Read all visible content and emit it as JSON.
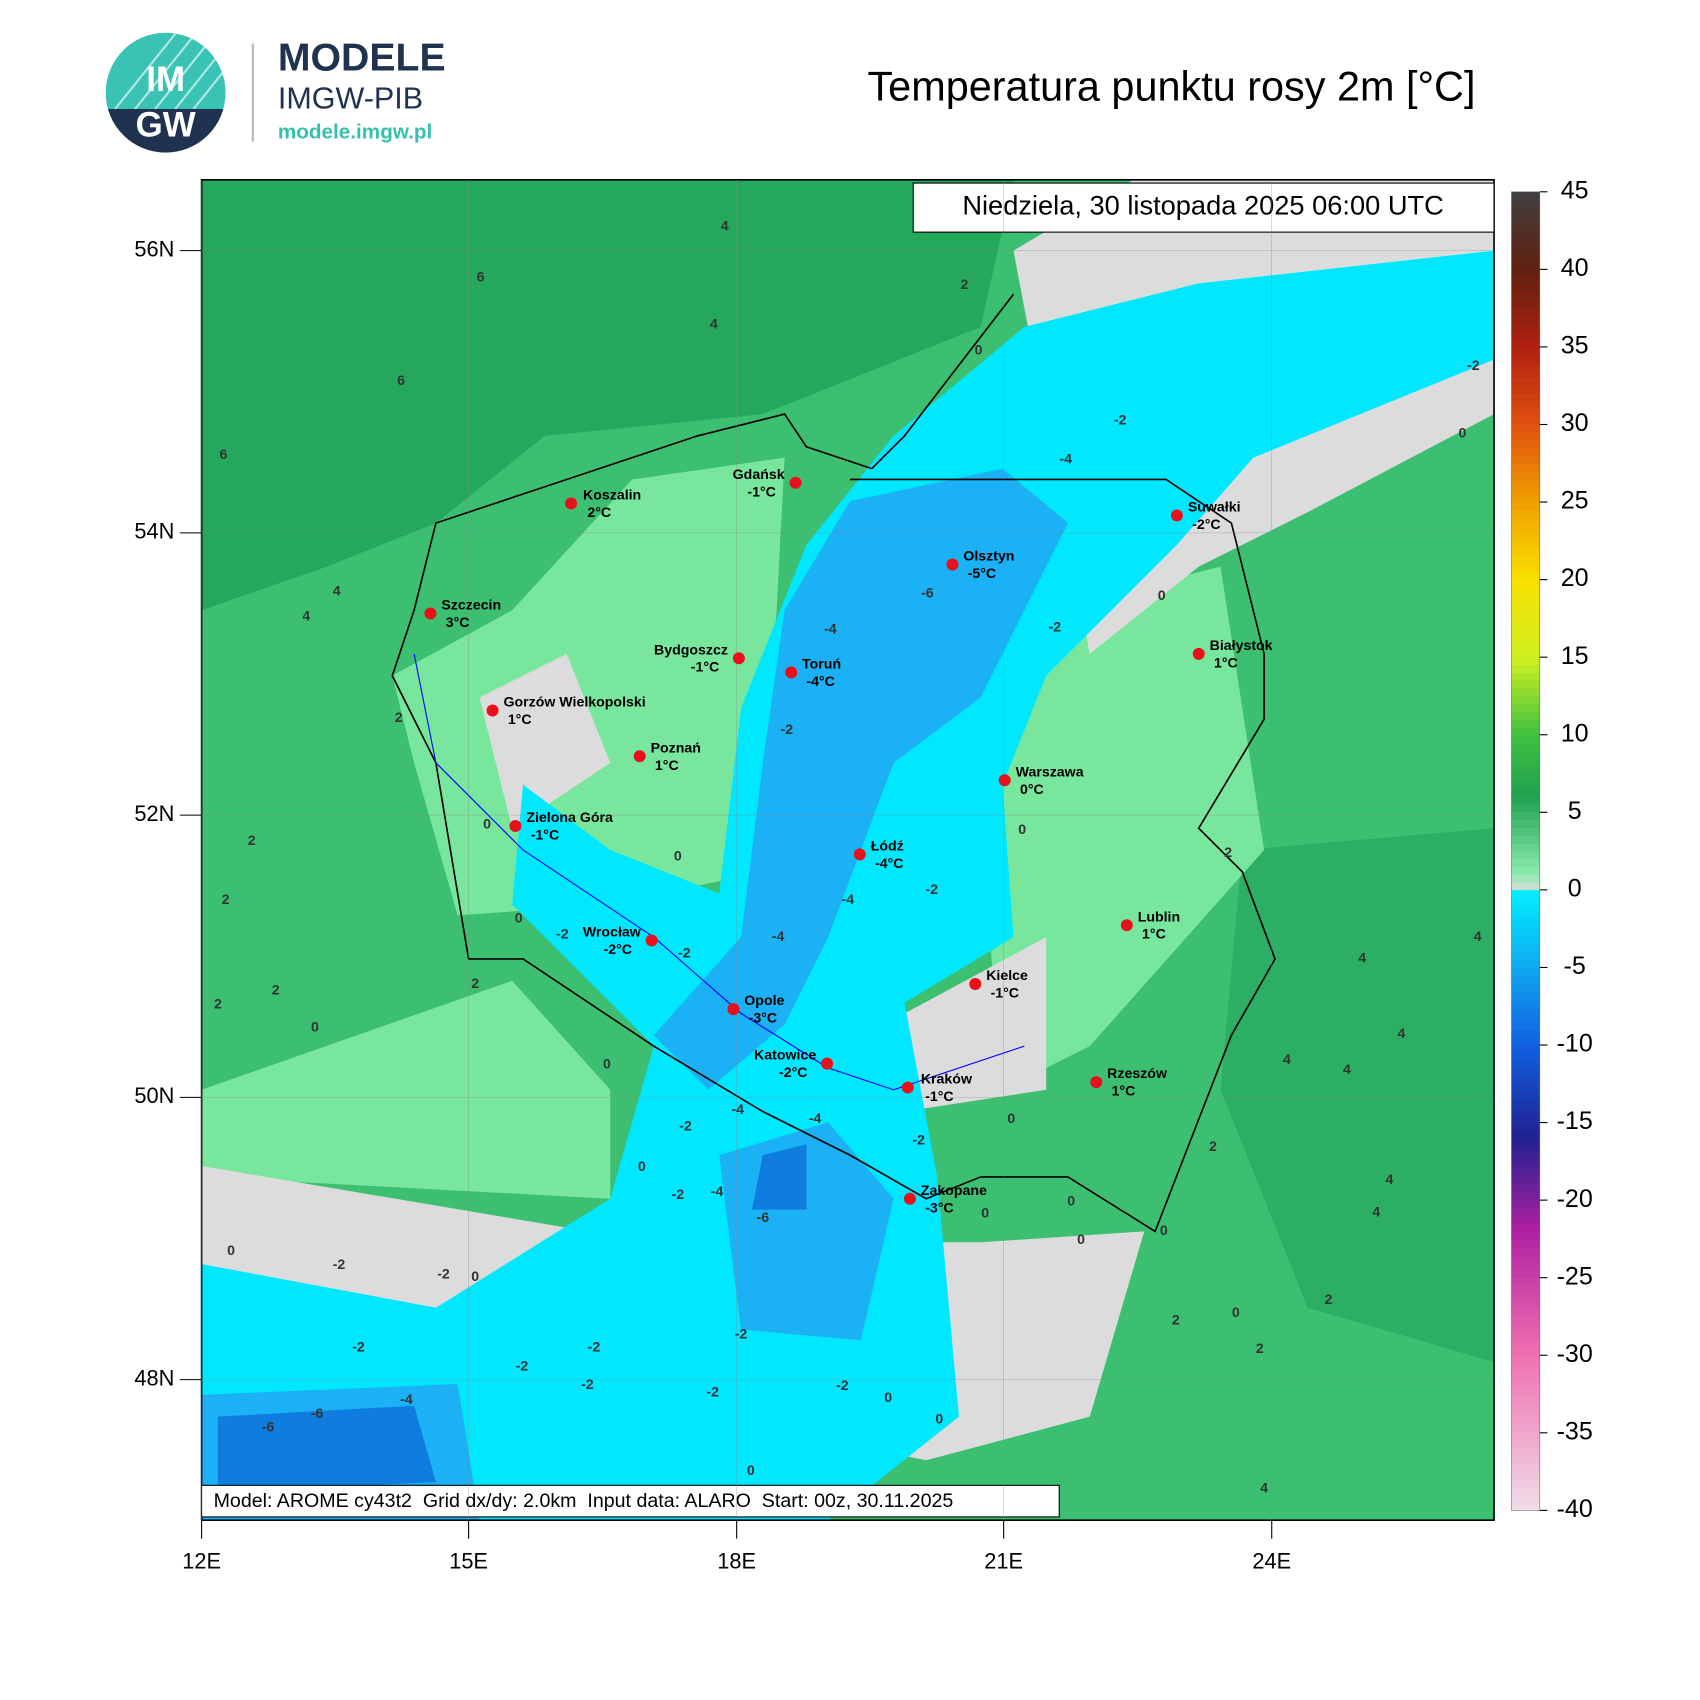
{
  "header": {
    "logo_top": "IM",
    "logo_bottom": "GW",
    "brand": "MODELE",
    "org": "IMGW-PIB",
    "url": "modele.imgw.pl",
    "title": "Temperatura punktu rosy 2m [°C]"
  },
  "map": {
    "date": "Niedziela, 30 listopada 2025 06:00 UTC",
    "footer": "Model: AROME cy43t2  Grid dx/dy: 2.0km  Input data: ALARO  Start: 00z, 30.11.2025",
    "lat_labels": [
      "56N",
      "54N",
      "52N",
      "50N",
      "48N"
    ],
    "lon_labels": [
      "12E",
      "15E",
      "18E",
      "21E",
      "24E"
    ],
    "cities": [
      {
        "name": "Gdańsk",
        "temp": "-1°C"
      },
      {
        "name": "Koszalin",
        "temp": "2°C"
      },
      {
        "name": "Szczecin",
        "temp": "3°C"
      },
      {
        "name": "Gorzów Wielkopolski",
        "temp": "1°C"
      },
      {
        "name": "Poznań",
        "temp": "1°C"
      },
      {
        "name": "Zielona Góra",
        "temp": "-1°C"
      },
      {
        "name": "Wrocław",
        "temp": "-2°C"
      },
      {
        "name": "Opole",
        "temp": "-3°C"
      },
      {
        "name": "Katowice",
        "temp": "-2°C"
      },
      {
        "name": "Kraków",
        "temp": "-1°C"
      },
      {
        "name": "Zakopane",
        "temp": "-3°C"
      },
      {
        "name": "Bydgoszcz",
        "temp": "-1°C"
      },
      {
        "name": "Toruń",
        "temp": "-4°C"
      },
      {
        "name": "Olsztyn",
        "temp": "-5°C"
      },
      {
        "name": "Suwałki",
        "temp": "-2°C"
      },
      {
        "name": "Białystok",
        "temp": "1°C"
      },
      {
        "name": "Warszawa",
        "temp": "0°C"
      },
      {
        "name": "Łódź",
        "temp": "-4°C"
      },
      {
        "name": "Kielce",
        "temp": "-1°C"
      },
      {
        "name": "Lublin",
        "temp": "1°C"
      },
      {
        "name": "Rzeszów",
        "temp": "1°C"
      }
    ],
    "contour_labels": [
      4,
      6,
      2,
      4,
      6,
      0,
      6,
      -2,
      -4,
      -2,
      0,
      4,
      4,
      -6,
      -4,
      -2,
      0,
      2,
      -2,
      0,
      0,
      0,
      2,
      2,
      -4,
      -2,
      2,
      0,
      -2,
      -2,
      -4,
      2,
      2,
      2,
      4,
      4,
      0,
      4,
      0,
      4,
      4,
      -4,
      -4,
      -2,
      -2,
      0,
      2,
      0,
      -4,
      -2,
      -6,
      4,
      4,
      0,
      0,
      0,
      0,
      0,
      -2,
      -2,
      0,
      2,
      0,
      2,
      -2,
      2,
      -2,
      -2,
      -2,
      -2,
      -2,
      -2,
      0,
      -4,
      -6,
      0,
      -6,
      0,
      4
    ]
  },
  "colorbar": {
    "ticks": [
      45,
      40,
      35,
      30,
      25,
      20,
      15,
      10,
      5,
      0,
      -5,
      -10,
      -15,
      -20,
      -25,
      -30,
      -35,
      -40
    ]
  }
}
